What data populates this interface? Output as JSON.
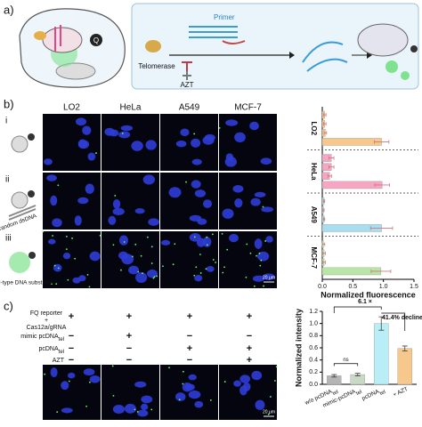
{
  "panels": {
    "a": {
      "label": "a)",
      "primer": "Primer",
      "telomerase": "Telomerase",
      "azt": "AZT",
      "quencher": "Q"
    },
    "b": {
      "label": "b)",
      "columns": [
        "LO2",
        "HeLa",
        "A549",
        "MCF-7"
      ],
      "rows": [
        "i",
        "ii",
        "iii"
      ],
      "captions": [
        "random dsDNA",
        "wild-type DNA substrate"
      ],
      "scale_bar": "20 μm"
    },
    "c": {
      "label": "c)",
      "conditions": [
        {
          "lines": [
            "FQ reporter",
            "+",
            "Cas12a/gRNA"
          ],
          "signs": [
            "+",
            "+",
            "+",
            "+"
          ]
        },
        {
          "lines": [
            "mimic pcDNA"
          ],
          "sub": "tel",
          "signs": [
            "−",
            "+",
            "−",
            "−"
          ]
        },
        {
          "lines": [
            "pcDNA"
          ],
          "sub": "tel",
          "signs": [
            "−",
            "−",
            "+",
            "+"
          ]
        },
        {
          "lines": [
            "AZT"
          ],
          "signs": [
            "−",
            "−",
            "−",
            "+"
          ]
        }
      ],
      "scale_bar": "20 μm"
    }
  },
  "chart_data": [
    {
      "type": "hbar",
      "xlabel": "Normalized fluorescence",
      "categories": [
        null,
        null,
        null,
        null
      ],
      "series": [
        {
          "name": "LO2",
          "color": "#f7c88e",
          "values": [
            0.04,
            0.04,
            0.05,
            0.97
          ],
          "errors": [
            0.02,
            0.02,
            0.02,
            0.12
          ]
        },
        {
          "name": "HeLa",
          "color": "#f4a6c3",
          "values": [
            0.15,
            0.15,
            0.12,
            0.98
          ],
          "errors": [
            0.04,
            0.04,
            0.03,
            0.12
          ]
        },
        {
          "name": "A549",
          "color": "#a9def0",
          "values": [
            0.03,
            0.02,
            0.03,
            0.97
          ],
          "errors": [
            0.01,
            0.01,
            0.01,
            0.18
          ]
        },
        {
          "name": "MCF-7",
          "color": "#b8e6a6",
          "values": [
            0.02,
            0.03,
            0.03,
            0.96
          ],
          "errors": [
            0.02,
            0.02,
            0.02,
            0.16
          ]
        }
      ],
      "xlim": [
        0,
        1.5
      ],
      "xticks": [
        {
          "value": 0,
          "label": "0.0"
        },
        {
          "value": 0.5,
          "label": "0.5"
        },
        {
          "value": 1,
          "label": "1.0"
        },
        {
          "value": 1.5,
          "label": "1.5"
        }
      ]
    },
    {
      "type": "bar",
      "ylabel": "Normalized intensity",
      "categories": [
        "w/o pcDNA",
        "mimic-pcDNA",
        "pcDNA",
        "+ AZT"
      ],
      "category_subscripts": [
        "tel",
        "tel",
        "tel",
        null
      ],
      "values": [
        0.14,
        0.16,
        1.0,
        0.59
      ],
      "errors": [
        0.02,
        0.02,
        0.11,
        0.04
      ],
      "colors": [
        "#b5b5b5",
        "#c9d9c6",
        "#b9eef6",
        "#f6c88c"
      ],
      "annotations": [
        "6.1 ×",
        "41.4% decline",
        "ns"
      ],
      "ylim": [
        0,
        1.2
      ],
      "yticks": [
        {
          "value": 0,
          "label": "0.0"
        },
        {
          "value": 0.2,
          "label": "0.2"
        },
        {
          "value": 0.4,
          "label": "0.4"
        },
        {
          "value": 0.6,
          "label": "0.6"
        },
        {
          "value": 0.8,
          "label": "0.8"
        },
        {
          "value": 1,
          "label": "1.0"
        },
        {
          "value": 1.2,
          "label": "1.2"
        }
      ]
    }
  ]
}
